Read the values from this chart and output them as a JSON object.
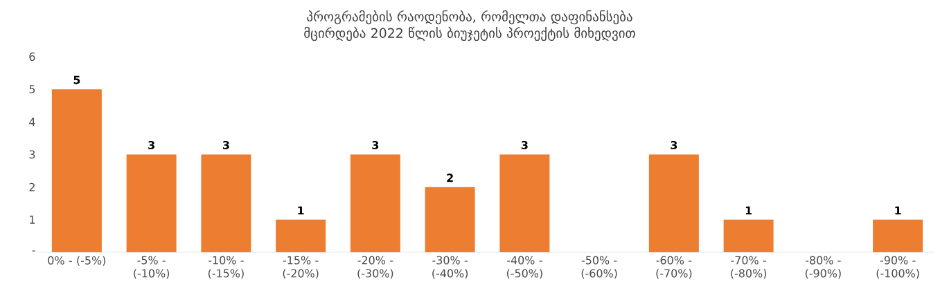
{
  "chart_data": {
    "type": "bar",
    "title": "პროგრამების რაოდენობა, რომელთა დაფინანსება მცირდება 2022 წლის ბიუჯეტის პროექტის მიხედვით",
    "categories": [
      "0% - (-5%)",
      "-5% - (-10%)",
      "-10% - (-15%)",
      "-15% - (-20%)",
      "-20% - (-30%)",
      "-30% - (-40%)",
      "-40% - (-50%)",
      "-50% - (-60%)",
      "-60% - (-70%)",
      "-70% - (-80%)",
      "-80% - (-90%)",
      "-90% - (-100%)"
    ],
    "values": [
      5,
      3,
      3,
      1,
      3,
      2,
      3,
      0,
      3,
      1,
      0,
      1
    ],
    "value_labels": [
      "5",
      "3",
      "3",
      "1",
      "3",
      "2",
      "3",
      null,
      "3",
      "1",
      null,
      "1"
    ],
    "color": "#ed7d31",
    "ylim": [
      0,
      6
    ],
    "yticks": [
      {
        "value": 0,
        "label": "-"
      },
      1,
      2,
      3,
      4,
      5,
      6
    ],
    "grid": false
  }
}
